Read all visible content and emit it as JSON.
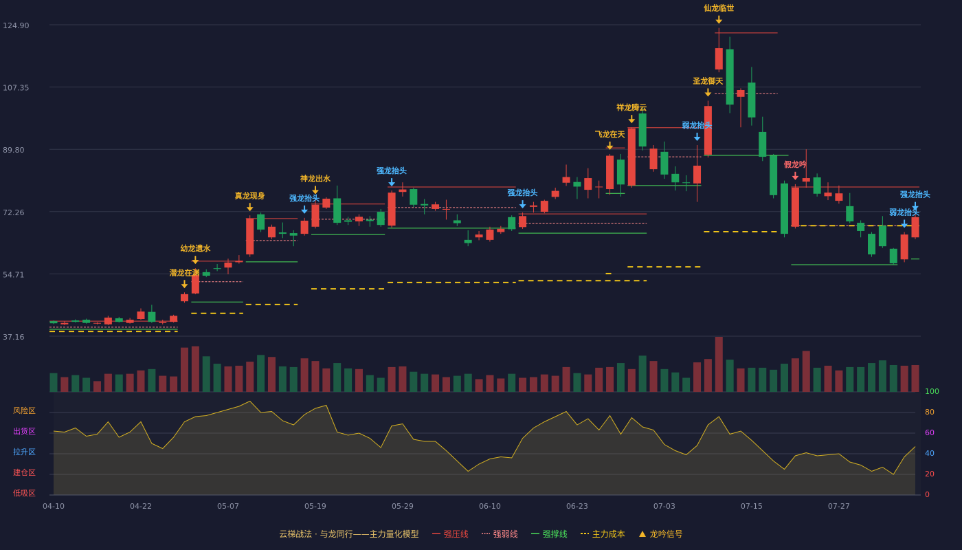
{
  "chart_data": [
    {
      "type": "candlestick",
      "categories": [
        "04-10",
        null,
        null,
        null,
        null,
        null,
        null,
        null,
        "04-22",
        null,
        null,
        null,
        null,
        null,
        null,
        null,
        "05-07",
        null,
        null,
        null,
        null,
        null,
        null,
        null,
        "05-19",
        null,
        null,
        null,
        null,
        null,
        null,
        null,
        "05-29",
        null,
        null,
        null,
        null,
        null,
        null,
        null,
        "06-10",
        null,
        null,
        null,
        null,
        null,
        null,
        null,
        "06-23",
        null,
        null,
        null,
        null,
        null,
        null,
        null,
        "07-03",
        null,
        null,
        null,
        null,
        null,
        null,
        null,
        "07-15",
        null,
        null,
        null,
        null,
        null,
        null,
        null,
        "07-27",
        null,
        null,
        null,
        null,
        null,
        null,
        null
      ],
      "open": [
        41.4,
        40.5,
        41.6,
        41.8,
        40.7,
        40.5,
        42.2,
        40.9,
        42.0,
        44.0,
        40.9,
        41.2,
        47.0,
        49.2,
        55.2,
        56.3,
        56.5,
        58.0,
        60.2,
        71.5,
        65.0,
        66.4,
        66.2,
        66.0,
        68.0,
        73.4,
        76.0,
        69.8,
        69.5,
        70.0,
        72.2,
        68.3,
        77.8,
        78.6,
        74.4,
        73.0,
        72.8,
        69.8,
        64.3,
        65.0,
        64.3,
        66.5,
        70.7,
        67.9,
        73.6,
        72.2,
        76.4,
        80.4,
        80.6,
        78.4,
        79.1,
        78.6,
        86.9,
        79.6,
        99.9,
        84.2,
        89.1,
        82.9,
        80.5,
        80.2,
        88.3,
        112.3,
        118.0,
        104.6,
        108.6,
        94.7,
        88.0,
        80.2,
        68.0,
        80.7,
        81.9,
        76.6,
        75.3,
        73.8,
        69.1,
        66.0,
        68.3,
        61.8,
        58.8,
        65.0
      ],
      "high": [
        41.6,
        41.3,
        41.9,
        42.1,
        41.1,
        42.9,
        42.6,
        42.3,
        45.0,
        46.0,
        41.8,
        43.2,
        49.5,
        56.3,
        56.0,
        57.5,
        59.0,
        60.0,
        71.2,
        72.0,
        68.6,
        69.2,
        67.0,
        70.5,
        76.0,
        76.3,
        79.6,
        70.8,
        71.5,
        71.0,
        73.0,
        78.2,
        80.5,
        79.0,
        75.8,
        75.0,
        75.6,
        71.5,
        67.0,
        66.8,
        68.0,
        68.2,
        71.2,
        72.0,
        75.0,
        75.6,
        79.0,
        85.5,
        82.0,
        84.5,
        81.0,
        88.5,
        88.5,
        96.0,
        101.5,
        91.0,
        92.0,
        85.0,
        82.5,
        91.0,
        103.5,
        124.0,
        121.5,
        107.0,
        113.0,
        99.0,
        88.5,
        81.0,
        80.0,
        89.8,
        83.0,
        80.5,
        79.6,
        77.5,
        69.8,
        66.5,
        71.0,
        62.0,
        66.5,
        71.5
      ],
      "low": [
        40.6,
        40.3,
        41.0,
        40.7,
        40.5,
        40.3,
        41.0,
        40.7,
        41.8,
        40.9,
        40.5,
        41.0,
        46.6,
        49.0,
        53.8,
        55.5,
        54.6,
        57.6,
        59.5,
        66.5,
        64.5,
        64.8,
        62.5,
        65.5,
        67.5,
        73.0,
        68.5,
        68.5,
        68.2,
        68.0,
        68.0,
        67.8,
        76.5,
        73.5,
        71.5,
        72.5,
        70.0,
        68.2,
        62.5,
        64.2,
        63.8,
        66.0,
        66.8,
        67.4,
        72.0,
        71.8,
        75.8,
        79.5,
        75.8,
        76.0,
        76.0,
        77.0,
        76.5,
        79.0,
        89.5,
        83.5,
        81.5,
        78.2,
        78.0,
        75.0,
        87.5,
        111.5,
        100.0,
        96.0,
        96.5,
        86.5,
        76.0,
        65.0,
        67.5,
        79.0,
        76.5,
        75.5,
        74.5,
        69.0,
        65.0,
        59.5,
        62.0,
        57.3,
        58.0,
        64.5
      ],
      "close": [
        40.8,
        40.9,
        41.2,
        40.9,
        40.9,
        42.4,
        41.2,
        41.8,
        44.1,
        41.2,
        41.2,
        42.9,
        49.0,
        54.4,
        54.2,
        56.1,
        57.9,
        58.4,
        70.3,
        67.2,
        68.0,
        66.0,
        65.5,
        69.7,
        74.2,
        75.9,
        69.1,
        69.4,
        70.8,
        69.6,
        68.5,
        77.6,
        78.5,
        74.2,
        74.0,
        74.3,
        73.0,
        69.0,
        63.4,
        65.8,
        67.2,
        67.4,
        67.3,
        71.0,
        74.0,
        75.3,
        78.1,
        82.0,
        79.3,
        81.7,
        79.3,
        88.0,
        79.9,
        95.7,
        90.6,
        90.0,
        82.7,
        80.5,
        80.3,
        85.2,
        102.0,
        118.3,
        102.4,
        106.5,
        98.8,
        87.7,
        76.9,
        66.0,
        79.0,
        81.7,
        77.3,
        77.6,
        77.4,
        69.5,
        66.8,
        60.2,
        62.5,
        57.7,
        65.8,
        70.7
      ],
      "up_color": "#e5473f",
      "down_color": "#1fa35c",
      "ylim": [
        37.16,
        124.9
      ],
      "yticks": [
        37.16,
        54.71,
        72.26,
        {
          "value": 89.8,
          "label": "89.80"
        },
        107.35,
        {
          "value": 124.9,
          "label": "124.90"
        }
      ],
      "grid": true,
      "series": [
        {
          "name": "强压线",
          "color": "#e5473f",
          "dash": "none",
          "width": 1,
          "segments": [
            {
              "start": 0,
              "end": 11,
              "value": 41.4
            },
            {
              "start": 13,
              "end": 17,
              "value": 58.3
            },
            {
              "start": 18,
              "end": 22,
              "value": 70.3
            },
            {
              "start": 24,
              "end": 30,
              "value": 74.4
            },
            {
              "start": 31,
              "end": 42,
              "value": 79.2
            },
            {
              "start": 43,
              "end": 54,
              "value": 71.6
            },
            {
              "start": 51,
              "end": 52,
              "value": 90.2
            },
            {
              "start": 53,
              "end": 59,
              "value": 95.9
            },
            {
              "start": 61,
              "end": 66,
              "value": 122.6
            },
            {
              "start": 68,
              "end": 79,
              "value": 79.2
            }
          ]
        },
        {
          "name": "强弱线",
          "color": "#ff8a8a",
          "dash": "3,2",
          "width": 1,
          "segments": [
            {
              "start": 0,
              "end": 11,
              "value": 39.7
            },
            {
              "start": 13,
              "end": 17,
              "value": 52.5
            },
            {
              "start": 18,
              "end": 22,
              "value": 64.1
            },
            {
              "start": 24,
              "end": 30,
              "value": 70.1
            },
            {
              "start": 31,
              "end": 42,
              "value": 73.4
            },
            {
              "start": 43,
              "end": 54,
              "value": 68.9
            },
            {
              "start": 53,
              "end": 59,
              "value": 87.7
            },
            {
              "start": 61,
              "end": 66,
              "value": 105.5
            },
            {
              "start": 68,
              "end": 79,
              "value": 68.3
            }
          ]
        },
        {
          "name": "强撑线",
          "color": "#4ade5a",
          "dash": "none",
          "width": 1,
          "segments": [
            {
              "start": 0,
              "end": 11,
              "value": 39.1
            },
            {
              "start": 13,
              "end": 17,
              "value": 46.8
            },
            {
              "start": 18,
              "end": 22,
              "value": 58.1
            },
            {
              "start": 24,
              "end": 30,
              "value": 65.8
            },
            {
              "start": 31,
              "end": 42,
              "value": 67.6
            },
            {
              "start": 43,
              "end": 54,
              "value": 66.2
            },
            {
              "start": 51,
              "end": 52,
              "value": 77.4
            },
            {
              "start": 53,
              "end": 59,
              "value": 79.6
            },
            {
              "start": 60,
              "end": 67,
              "value": 88.1
            },
            {
              "start": 68,
              "end": 77,
              "value": 57.3
            },
            {
              "start": 79,
              "end": 79,
              "value": 58.9
            }
          ]
        },
        {
          "name": "主力成本",
          "color": "#f0c419",
          "dash": "8,6",
          "width": 2,
          "segments": [
            {
              "start": 0,
              "end": 11,
              "value": 38.5
            },
            {
              "start": 13,
              "end": 17,
              "value": 43.6
            },
            {
              "start": 18,
              "end": 22,
              "value": 46.1
            },
            {
              "start": 24,
              "end": 30,
              "value": 50.5
            },
            {
              "start": 31,
              "end": 42,
              "value": 52.3
            },
            {
              "start": 43,
              "end": 54,
              "value": 52.8
            },
            {
              "start": 51,
              "end": 51,
              "value": 54.8
            },
            {
              "start": 53,
              "end": 59,
              "value": 56.7
            },
            {
              "start": 60,
              "end": 67,
              "value": 66.6
            },
            {
              "start": 68,
              "end": 79,
              "value": 68.3
            }
          ]
        }
      ],
      "signals": [
        {
          "index": 12,
          "label": "潜龙在渊",
          "color": "#f0b429"
        },
        {
          "index": 13,
          "label": "幼龙遗水",
          "color": "#f0b429"
        },
        {
          "index": 18,
          "label": "真龙现身",
          "color": "#f0b429"
        },
        {
          "index": 23,
          "label": "强龙抬头",
          "color": "#4db8ff"
        },
        {
          "index": 24,
          "label": "神龙出水",
          "color": "#f0b429"
        },
        {
          "index": 31,
          "label": "强龙抬头",
          "color": "#4db8ff"
        },
        {
          "index": 43,
          "label": "强龙抬头",
          "color": "#4db8ff"
        },
        {
          "index": 51,
          "label": "飞龙在天",
          "color": "#f0b429"
        },
        {
          "index": 53,
          "label": "祥龙腾云",
          "color": "#f0b429"
        },
        {
          "index": 59,
          "label": "弱龙抬头",
          "color": "#4db8ff"
        },
        {
          "index": 60,
          "label": "圣龙御天",
          "color": "#f0b429"
        },
        {
          "index": 61,
          "label": "仙龙临世",
          "color": "#f0b429"
        },
        {
          "index": 68,
          "label": "假龙吟",
          "color": "#ff6b6b"
        },
        {
          "index": 78,
          "label": "弱龙抬头",
          "color": "#4db8ff"
        },
        {
          "index": 79,
          "label": "强龙抬头",
          "color": "#4db8ff"
        }
      ],
      "signal_legend": {
        "name": "龙吟信号",
        "color": "#f0b429"
      },
      "legend_title": "云梯战法 · 与龙同行——主力量化模型",
      "legend_title_color": "#e8c36a"
    },
    {
      "type": "bar",
      "values": [
        28,
        22,
        25,
        21,
        16,
        27,
        26,
        27,
        32,
        34,
        24,
        23,
        66,
        68,
        53,
        42,
        38,
        39,
        45,
        55,
        52,
        38,
        37,
        50,
        46,
        35,
        43,
        35,
        34,
        25,
        21,
        37,
        38,
        30,
        27,
        26,
        22,
        24,
        27,
        19,
        25,
        20,
        27,
        21,
        22,
        26,
        24,
        37,
        28,
        26,
        36,
        37,
        43,
        34,
        54,
        46,
        34,
        29,
        21,
        44,
        49,
        82,
        48,
        35,
        36,
        36,
        33,
        42,
        50,
        61,
        36,
        39,
        32,
        37,
        37,
        43,
        47,
        40,
        39,
        40
      ],
      "up_color": "#7b2f38",
      "down_color": "#1d5a44"
    },
    {
      "type": "line",
      "values": [
        62,
        61,
        65,
        57,
        59,
        71,
        56,
        61,
        71,
        50,
        45,
        56,
        71,
        76,
        77,
        80,
        83,
        86,
        91,
        80,
        81,
        72,
        68,
        78,
        84,
        87,
        61,
        58,
        60,
        55,
        46,
        67,
        69,
        54,
        52,
        52,
        43,
        33,
        23,
        30,
        35,
        37,
        36,
        55,
        65,
        71,
        76,
        81,
        68,
        74,
        63,
        77,
        59,
        75,
        66,
        63,
        49,
        43,
        39,
        48,
        68,
        76,
        59,
        62,
        53,
        43,
        33,
        25,
        38,
        41,
        38,
        39,
        40,
        32,
        29,
        23,
        27,
        20,
        37,
        47
      ],
      "color": "#d4b022",
      "ylim": [
        0,
        100
      ],
      "yticks": [
        0,
        20,
        40,
        60,
        80,
        100
      ],
      "ytick_colors": [
        "#ff4d4d",
        "#ff4d4d",
        "#4da6ff",
        "#e040fb",
        "#f0a030",
        "#4ade5a"
      ],
      "zones": [
        {
          "value": 80,
          "label": "风险区",
          "color": "#f0a030"
        },
        {
          "value": 60,
          "label": "出货区",
          "color": "#e040fb"
        },
        {
          "value": 40,
          "label": "拉升区",
          "color": "#4da6ff"
        },
        {
          "value": 20,
          "label": "建仓区",
          "color": "#ff5555"
        },
        {
          "value": 0,
          "label": "低吸区",
          "color": "#ff5555"
        }
      ]
    }
  ]
}
